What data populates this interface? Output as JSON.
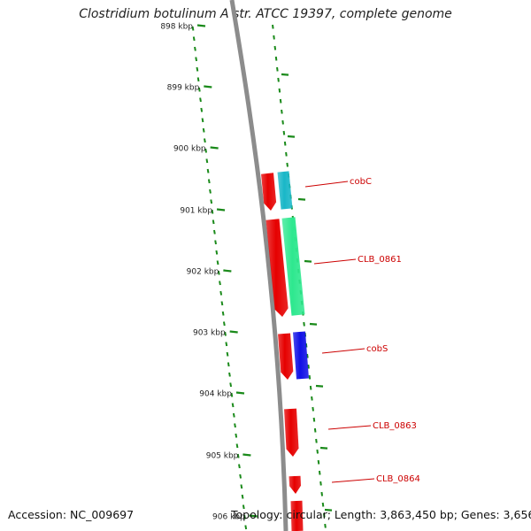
{
  "title": "Clostridium botulinum A str. ATCC 19397, complete genome",
  "accession_text": "Accession: NC_009697",
  "topology_text": "Topology: circular; Length: 3,863,450 bp; Genes: 3,656",
  "colors": {
    "tick": "#1a8a1a",
    "backbone": "#8c8c8c",
    "label": "#cc0000",
    "forward_strand": "#e60000"
  },
  "ruler": {
    "ticks": [
      "898 kbp",
      "899 kbp",
      "900 kbp",
      "901 kbp",
      "902 kbp",
      "903 kbp",
      "904 kbp",
      "905 kbp",
      "906 kbp"
    ]
  },
  "genes": [
    {
      "name": "cobC",
      "color": "#19b7c8",
      "strand": "forward"
    },
    {
      "name": "CLB_0861",
      "color": "#2ee88f",
      "strand": "forward"
    },
    {
      "name": "cobS",
      "color": "#1010e6",
      "strand": "forward"
    },
    {
      "name": "CLB_0863",
      "color": "",
      "strand": "forward"
    },
    {
      "name": "CLB_0864",
      "color": "",
      "strand": "forward"
    }
  ]
}
